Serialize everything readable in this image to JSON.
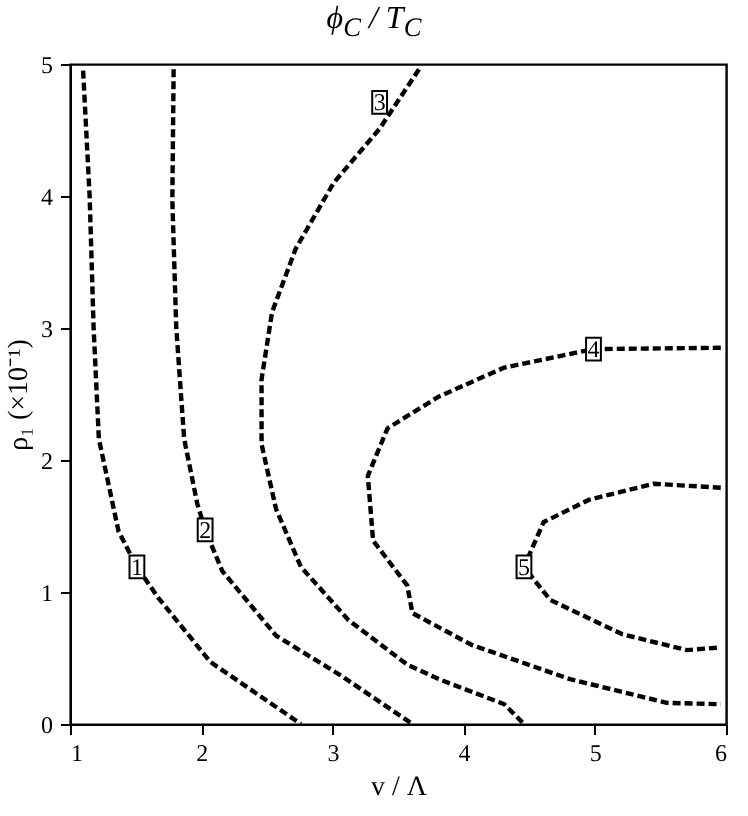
{
  "chart_data": {
    "type": "line",
    "title": "ϕ$_{C}$ / T$_{C}$",
    "xlabel": "v / Λ",
    "ylabel": "ρ₁ (×10⁻¹)",
    "xlim": [
      1,
      6
    ],
    "ylim": [
      0,
      5
    ],
    "xticks": [
      1,
      2,
      3,
      4,
      5,
      6
    ],
    "yticks": [
      0,
      1,
      2,
      3,
      4,
      5
    ],
    "grid": false,
    "legend": false,
    "line_style": "dashed",
    "marker": "none",
    "series": [
      {
        "color": "#000000",
        "x": [
          1.1,
          1.15,
          1.18,
          1.22,
          1.37,
          1.51,
          1.67,
          2.07,
          2.76
        ],
        "values": [
          4.95,
          3.99,
          3.0,
          2.16,
          1.46,
          1.19,
          0.96,
          0.47,
          0
        ]
      },
      {
        "color": "#000000",
        "x": [
          1.79,
          1.78,
          1.81,
          1.87,
          1.97,
          2.03,
          2.16,
          2.57,
          3.06,
          3.61
        ],
        "values": [
          4.96,
          3.97,
          3.0,
          2.16,
          1.67,
          1.47,
          1.16,
          0.67,
          0.37,
          0
        ]
      },
      {
        "color": "#000000",
        "x": [
          3.66,
          3.36,
          3.01,
          2.72,
          2.54,
          2.46,
          2.46,
          2.57,
          2.76,
          3.12,
          3.57,
          3.81,
          4.31,
          4.46
        ],
        "values": [
          4.96,
          4.51,
          4.1,
          3.6,
          3.12,
          2.61,
          2.12,
          1.63,
          1.19,
          0.79,
          0.45,
          0.34,
          0.15,
          0
        ]
      },
      {
        "color": "#000000",
        "x": [
          5.96,
          4.99,
          4.31,
          3.81,
          3.42,
          3.27,
          3.31,
          3.57,
          3.61,
          4.06,
          4.81,
          5.55,
          5.96
        ],
        "values": [
          2.85,
          2.84,
          2.7,
          2.48,
          2.24,
          1.88,
          1.39,
          1.05,
          0.84,
          0.6,
          0.34,
          0.16,
          0.15
        ]
      },
      {
        "color": "#000000",
        "x": [
          5.96,
          5.45,
          4.96,
          4.61,
          4.46,
          4.66,
          5.21,
          5.7,
          5.96
        ],
        "values": [
          1.79,
          1.82,
          1.7,
          1.53,
          1.19,
          0.94,
          0.68,
          0.56,
          0.58
        ]
      }
    ],
    "annotations": [
      {
        "text": "1",
        "x": 1.51,
        "y": 1.19
      },
      {
        "text": "2",
        "x": 2.03,
        "y": 1.47
      },
      {
        "text": "3",
        "x": 3.36,
        "y": 4.71
      },
      {
        "text": "4",
        "x": 4.99,
        "y": 2.84
      },
      {
        "text": "5",
        "x": 4.46,
        "y": 1.19
      }
    ]
  }
}
